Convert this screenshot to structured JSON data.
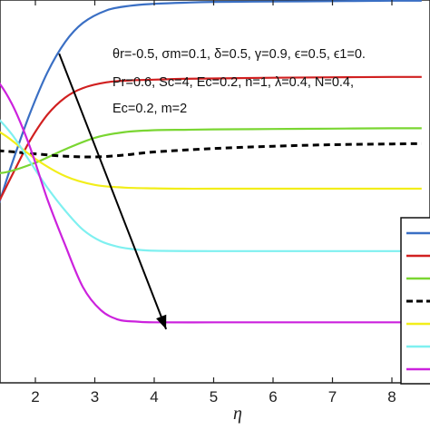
{
  "chart_data": {
    "type": "line",
    "xlabel": "η",
    "xlim": [
      1.0,
      8.5
    ],
    "ylim": [
      0,
      1
    ],
    "x_ticks": [
      "2",
      "3",
      "4",
      "5",
      "6",
      "7",
      "8"
    ],
    "annotation_lines": [
      "θr=-0.5, σm=0.1, δ=0.5, γ=0.9, ϵ=0.5, ϵ1=0.",
      "Pr=0.6, Sc=4, Ec=0.2, n=1, λ=0.4, N=0.4,",
      "Ec=0.2, m=2"
    ],
    "legend_placement": "bottom-right",
    "series": [
      {
        "color": "#3a6fc4",
        "dashed": false,
        "x": [
          1.0,
          1.3,
          1.6,
          1.9,
          2.2,
          2.5,
          2.8,
          3.2,
          3.6,
          4.0,
          4.5,
          5.0,
          6.0,
          7.0,
          8.0,
          8.5
        ],
        "y": [
          0.32,
          0.43,
          0.57,
          0.7,
          0.81,
          0.89,
          0.94,
          0.973,
          0.985,
          0.99,
          0.993,
          0.995,
          0.996,
          0.997,
          0.998,
          0.998
        ]
      },
      {
        "color": "#d12020",
        "dashed": false,
        "x": [
          1.0,
          1.3,
          1.6,
          1.9,
          2.2,
          2.5,
          2.8,
          3.2,
          3.6,
          4.0,
          4.5,
          5.0,
          6.0,
          7.0,
          8.0,
          8.5
        ],
        "y": [
          0.39,
          0.45,
          0.54,
          0.63,
          0.7,
          0.745,
          0.77,
          0.785,
          0.79,
          0.792,
          0.794,
          0.795,
          0.797,
          0.798,
          0.799,
          0.799
        ]
      },
      {
        "color": "#7ad632",
        "dashed": false,
        "x": [
          1.0,
          1.5,
          2.0,
          2.5,
          3.0,
          3.5,
          4.0,
          4.5,
          5.0,
          6.0,
          7.0,
          8.0,
          8.5
        ],
        "y": [
          0.545,
          0.55,
          0.575,
          0.61,
          0.64,
          0.655,
          0.66,
          0.661,
          0.662,
          0.663,
          0.664,
          0.665,
          0.665
        ]
      },
      {
        "color": "#000000",
        "dashed": true,
        "x": [
          1.0,
          1.5,
          2.0,
          2.5,
          3.0,
          3.5,
          4.0,
          5.0,
          6.0,
          7.0,
          8.0,
          8.5
        ],
        "y": [
          0.61,
          0.605,
          0.598,
          0.592,
          0.59,
          0.595,
          0.603,
          0.612,
          0.618,
          0.622,
          0.624,
          0.625
        ]
      },
      {
        "color": "#f2ee1a",
        "dashed": false,
        "x": [
          1.0,
          1.5,
          2.0,
          2.5,
          3.0,
          3.5,
          4.0,
          4.5,
          5.0,
          6.0,
          7.0,
          8.0,
          8.5
        ],
        "y": [
          0.69,
          0.645,
          0.585,
          0.54,
          0.517,
          0.51,
          0.508,
          0.507,
          0.507,
          0.507,
          0.507,
          0.507,
          0.507
        ]
      },
      {
        "color": "#7ff0f0",
        "dashed": false,
        "x": [
          1.0,
          1.3,
          1.6,
          1.9,
          2.2,
          2.5,
          2.8,
          3.1,
          3.4,
          3.7,
          4.0,
          5.0,
          6.0,
          7.0,
          8.0,
          8.5
        ],
        "y": [
          0.73,
          0.7,
          0.65,
          0.58,
          0.51,
          0.45,
          0.4,
          0.37,
          0.355,
          0.348,
          0.345,
          0.344,
          0.344,
          0.344,
          0.344,
          0.344
        ]
      },
      {
        "color": "#cc22dd",
        "dashed": false,
        "x": [
          1.0,
          1.3,
          1.6,
          1.9,
          2.2,
          2.5,
          2.8,
          3.1,
          3.4,
          3.7,
          4.0,
          5.0,
          6.0,
          7.0,
          8.0,
          8.5
        ],
        "y": [
          0.83,
          0.8,
          0.73,
          0.62,
          0.48,
          0.36,
          0.25,
          0.19,
          0.165,
          0.16,
          0.158,
          0.158,
          0.158,
          0.158,
          0.158,
          0.158
        ]
      }
    ],
    "arrow": {
      "from": [
        2.4,
        0.86
      ],
      "to": [
        4.2,
        0.14
      ]
    }
  }
}
